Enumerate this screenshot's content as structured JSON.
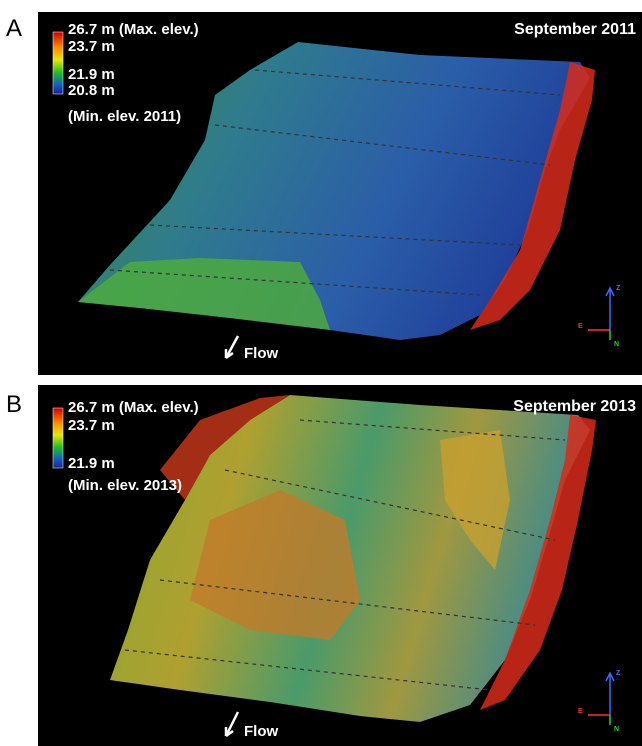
{
  "panels": [
    {
      "label": "A",
      "title": "September 2011",
      "legend": [
        "26.7 m (Max. elev.)",
        "23.7 m",
        "21.9 m",
        "20.8 m",
        "(Min. elev. 2011)"
      ],
      "flow": "Flow",
      "axes": {
        "z": "Z",
        "e": "E",
        "n": "N"
      }
    },
    {
      "label": "B",
      "title": "September 2013",
      "legend": [
        "26.7 m (Max. elev.)",
        "23.7 m",
        "21.9 m",
        "(Min. elev. 2013)"
      ],
      "flow": "Flow",
      "axes": {
        "z": "Z",
        "e": "E",
        "n": "N"
      }
    }
  ]
}
